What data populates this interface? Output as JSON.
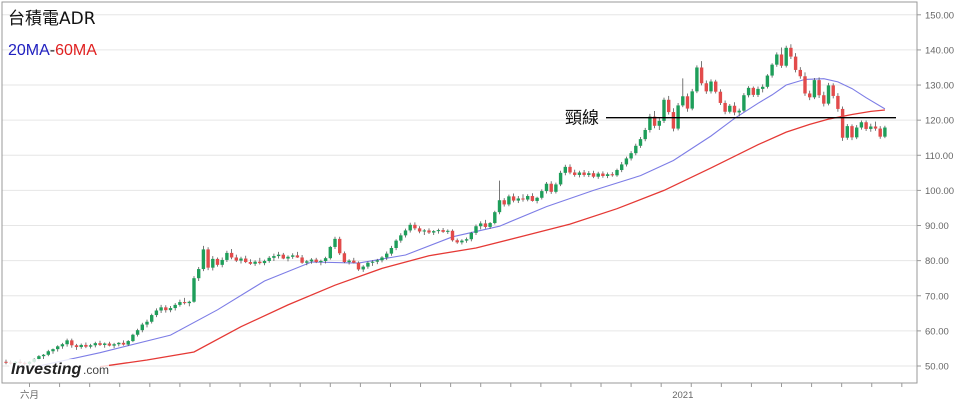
{
  "title": "台積電ADR",
  "legend": {
    "ma20_label": "20MA",
    "separator": "-",
    "ma60_label": "60MA"
  },
  "colors": {
    "up": "#1e9e5a",
    "down": "#e24b4b",
    "ma20": "#7d7de6",
    "ma60": "#e53935",
    "neckline": "#000000",
    "legend_ma20": "#2020c0",
    "legend_ma60": "#e02020",
    "grid": "#e6e6e6",
    "axis": "#999999"
  },
  "brand": {
    "name": "Investing",
    "suffix": ".com"
  },
  "chart_data": {
    "type": "candlestick",
    "title": "台積電ADR",
    "ylim": [
      44,
      152
    ],
    "yticks": [
      "50.00",
      "60.00",
      "70.00",
      "80.00",
      "90.00",
      "100.00",
      "110.00",
      "120.00",
      "130.00",
      "140.00",
      "150.00"
    ],
    "xticks": [
      {
        "label": "六月",
        "index": 5
      },
      {
        "label": "2021",
        "index": 144
      }
    ],
    "grid": true,
    "neckline": {
      "label": "頸線",
      "value": 120.7
    },
    "ohlc": [
      [
        51.2,
        51.8,
        50.5,
        51.0
      ],
      [
        51.0,
        51.6,
        50.4,
        50.8
      ],
      [
        50.8,
        51.4,
        50.2,
        51.2
      ],
      [
        51.2,
        51.9,
        50.6,
        50.9
      ],
      [
        50.9,
        51.3,
        50.0,
        50.6
      ],
      [
        50.6,
        51.4,
        50.1,
        51.2
      ],
      [
        51.2,
        52.2,
        50.9,
        52.0
      ],
      [
        52.0,
        53.1,
        51.6,
        52.8
      ],
      [
        52.8,
        53.4,
        52.0,
        53.2
      ],
      [
        53.2,
        54.6,
        52.8,
        54.2
      ],
      [
        54.2,
        55.0,
        53.5,
        54.8
      ],
      [
        54.8,
        55.9,
        54.1,
        55.6
      ],
      [
        55.6,
        56.6,
        54.9,
        56.2
      ],
      [
        56.2,
        57.8,
        55.5,
        57.3
      ],
      [
        57.3,
        57.8,
        55.2,
        55.9
      ],
      [
        55.9,
        56.3,
        54.6,
        55.4
      ],
      [
        55.4,
        56.4,
        54.9,
        56.0
      ],
      [
        56.0,
        56.7,
        55.1,
        55.5
      ],
      [
        55.5,
        56.3,
        55.0,
        55.9
      ],
      [
        55.9,
        56.9,
        55.3,
        56.5
      ],
      [
        56.5,
        57.2,
        55.7,
        56.0
      ],
      [
        56.0,
        56.7,
        55.2,
        56.4
      ],
      [
        56.4,
        56.9,
        55.6,
        55.8
      ],
      [
        55.8,
        56.6,
        55.1,
        56.2
      ],
      [
        56.2,
        56.8,
        55.6,
        56.6
      ],
      [
        56.6,
        57.3,
        55.8,
        56.1
      ],
      [
        56.1,
        57.4,
        55.7,
        57.1
      ],
      [
        57.1,
        59.2,
        56.8,
        58.9
      ],
      [
        58.9,
        60.6,
        58.4,
        60.2
      ],
      [
        60.2,
        62.3,
        59.6,
        61.8
      ],
      [
        61.8,
        63.2,
        61.0,
        62.6
      ],
      [
        62.6,
        64.9,
        62.1,
        64.5
      ],
      [
        64.5,
        66.4,
        63.9,
        65.8
      ],
      [
        65.8,
        67.4,
        65.1,
        66.7
      ],
      [
        66.7,
        67.3,
        65.2,
        65.9
      ],
      [
        65.9,
        67.1,
        65.3,
        66.5
      ],
      [
        66.5,
        67.9,
        65.8,
        67.4
      ],
      [
        67.4,
        68.9,
        66.9,
        68.2
      ],
      [
        68.2,
        69.4,
        67.5,
        67.9
      ],
      [
        67.9,
        68.6,
        67.0,
        68.3
      ],
      [
        68.3,
        75.6,
        68.0,
        75.0
      ],
      [
        75.0,
        78.2,
        74.2,
        77.6
      ],
      [
        77.6,
        84.2,
        77.0,
        83.2
      ],
      [
        83.2,
        83.8,
        77.3,
        78.0
      ],
      [
        78.0,
        81.3,
        77.2,
        80.5
      ],
      [
        80.5,
        80.9,
        78.3,
        78.8
      ],
      [
        78.8,
        80.9,
        78.1,
        80.2
      ],
      [
        80.2,
        82.8,
        79.6,
        82.2
      ],
      [
        82.2,
        83.3,
        80.4,
        80.9
      ],
      [
        80.9,
        81.7,
        79.6,
        80.0
      ],
      [
        80.0,
        81.1,
        79.2,
        80.6
      ],
      [
        80.6,
        81.4,
        79.3,
        79.6
      ],
      [
        79.6,
        80.4,
        78.8,
        79.1
      ],
      [
        79.1,
        80.1,
        78.5,
        79.7
      ],
      [
        79.7,
        80.8,
        78.9,
        79.3
      ],
      [
        79.3,
        80.3,
        78.7,
        79.9
      ],
      [
        79.9,
        81.3,
        79.4,
        80.8
      ],
      [
        80.8,
        82.0,
        79.9,
        81.3
      ],
      [
        81.3,
        82.5,
        80.6,
        81.7
      ],
      [
        81.7,
        82.2,
        80.4,
        80.6
      ],
      [
        80.6,
        81.5,
        79.8,
        81.1
      ],
      [
        81.1,
        82.1,
        80.5,
        81.5
      ],
      [
        81.5,
        82.5,
        80.8,
        80.9
      ],
      [
        80.9,
        81.6,
        79.1,
        79.4
      ],
      [
        79.4,
        80.2,
        78.7,
        79.8
      ],
      [
        79.8,
        80.7,
        79.1,
        80.3
      ],
      [
        80.3,
        80.8,
        79.3,
        79.6
      ],
      [
        79.6,
        80.3,
        78.7,
        79.9
      ],
      [
        79.9,
        81.1,
        79.2,
        80.7
      ],
      [
        80.7,
        84.2,
        80.3,
        83.9
      ],
      [
        83.9,
        86.8,
        83.3,
        86.2
      ],
      [
        86.2,
        86.8,
        81.6,
        82.1
      ],
      [
        82.1,
        82.6,
        79.3,
        79.6
      ],
      [
        79.6,
        80.4,
        78.9,
        80.0
      ],
      [
        80.0,
        80.8,
        79.2,
        79.4
      ],
      [
        79.4,
        79.8,
        77.1,
        77.5
      ],
      [
        77.5,
        78.7,
        76.8,
        78.3
      ],
      [
        78.3,
        79.8,
        77.7,
        79.4
      ],
      [
        79.4,
        80.1,
        78.5,
        79.7
      ],
      [
        79.7,
        80.5,
        79.0,
        80.1
      ],
      [
        80.1,
        81.3,
        79.5,
        80.9
      ],
      [
        80.9,
        82.6,
        80.2,
        82.0
      ],
      [
        82.0,
        84.2,
        81.4,
        83.6
      ],
      [
        83.6,
        86.1,
        83.0,
        85.7
      ],
      [
        85.7,
        87.8,
        85.1,
        87.2
      ],
      [
        87.2,
        89.1,
        86.6,
        88.6
      ],
      [
        88.6,
        90.8,
        88.0,
        90.2
      ],
      [
        90.2,
        90.9,
        88.7,
        89.2
      ],
      [
        89.2,
        89.8,
        87.8,
        88.3
      ],
      [
        88.3,
        89.0,
        87.3,
        88.6
      ],
      [
        88.6,
        89.2,
        87.6,
        88.0
      ],
      [
        88.0,
        88.7,
        87.3,
        88.4
      ],
      [
        88.4,
        89.1,
        87.7,
        88.7
      ],
      [
        88.7,
        89.3,
        87.9,
        88.2
      ],
      [
        88.2,
        88.9,
        87.6,
        88.5
      ],
      [
        88.5,
        88.9,
        85.4,
        85.8
      ],
      [
        85.8,
        86.3,
        84.8,
        85.2
      ],
      [
        85.2,
        86.1,
        84.6,
        85.7
      ],
      [
        85.7,
        86.6,
        85.1,
        86.1
      ],
      [
        86.1,
        88.2,
        85.5,
        87.9
      ],
      [
        87.9,
        90.3,
        87.3,
        89.8
      ],
      [
        89.8,
        91.2,
        88.9,
        90.6
      ],
      [
        90.6,
        91.6,
        89.1,
        89.6
      ],
      [
        89.6,
        91.0,
        89.0,
        90.7
      ],
      [
        90.7,
        94.2,
        90.3,
        93.8
      ],
      [
        93.8,
        102.8,
        93.2,
        97.2
      ],
      [
        97.2,
        97.8,
        95.4,
        96.0
      ],
      [
        96.0,
        98.8,
        95.5,
        98.3
      ],
      [
        98.3,
        99.1,
        96.6,
        97.1
      ],
      [
        97.1,
        98.4,
        96.4,
        97.7
      ],
      [
        97.7,
        98.9,
        96.8,
        97.4
      ],
      [
        97.4,
        98.9,
        96.9,
        98.4
      ],
      [
        98.4,
        99.2,
        96.8,
        97.0
      ],
      [
        97.0,
        98.2,
        96.3,
        97.9
      ],
      [
        97.9,
        100.3,
        97.4,
        99.8
      ],
      [
        99.8,
        102.4,
        99.1,
        101.9
      ],
      [
        101.9,
        102.6,
        99.0,
        99.6
      ],
      [
        99.6,
        102.2,
        99.1,
        101.7
      ],
      [
        101.7,
        105.6,
        101.2,
        105.0
      ],
      [
        105.0,
        107.3,
        104.3,
        106.7
      ],
      [
        106.7,
        107.4,
        104.6,
        105.1
      ],
      [
        105.1,
        105.9,
        103.9,
        104.4
      ],
      [
        104.4,
        105.6,
        103.7,
        105.1
      ],
      [
        105.1,
        105.8,
        103.9,
        104.4
      ],
      [
        104.4,
        105.5,
        103.8,
        104.9
      ],
      [
        104.9,
        105.6,
        103.5,
        103.9
      ],
      [
        103.9,
        105.3,
        103.3,
        104.8
      ],
      [
        104.8,
        105.4,
        103.6,
        104.1
      ],
      [
        104.1,
        105.1,
        103.5,
        104.6
      ],
      [
        104.6,
        105.2,
        103.9,
        104.3
      ],
      [
        104.3,
        106.2,
        103.9,
        105.8
      ],
      [
        105.8,
        108.1,
        105.2,
        107.4
      ],
      [
        107.4,
        109.6,
        106.8,
        109.1
      ],
      [
        109.1,
        111.2,
        108.5,
        110.6
      ],
      [
        110.6,
        113.3,
        110.0,
        112.7
      ],
      [
        112.7,
        115.2,
        112.1,
        114.6
      ],
      [
        114.6,
        117.8,
        114.0,
        117.2
      ],
      [
        117.2,
        121.8,
        116.5,
        121.0
      ],
      [
        121.0,
        122.6,
        117.7,
        118.4
      ],
      [
        118.4,
        120.6,
        117.2,
        119.8
      ],
      [
        119.8,
        126.4,
        119.2,
        125.8
      ],
      [
        125.8,
        126.9,
        121.6,
        122.3
      ],
      [
        122.3,
        123.4,
        116.8,
        117.6
      ],
      [
        117.6,
        124.9,
        117.1,
        124.2
      ],
      [
        124.2,
        131.9,
        123.7,
        126.8
      ],
      [
        126.8,
        127.6,
        122.4,
        123.3
      ],
      [
        123.3,
        128.9,
        122.8,
        128.2
      ],
      [
        128.2,
        135.6,
        127.7,
        135.0
      ],
      [
        135.0,
        136.8,
        129.9,
        130.5
      ],
      [
        130.5,
        131.3,
        127.5,
        128.2
      ],
      [
        128.2,
        131.6,
        127.6,
        131.0
      ],
      [
        131.0,
        131.5,
        127.6,
        128.1
      ],
      [
        128.1,
        128.8,
        124.3,
        124.9
      ],
      [
        124.9,
        125.6,
        121.7,
        122.4
      ],
      [
        122.4,
        124.6,
        121.9,
        124.1
      ],
      [
        124.1,
        125.1,
        121.4,
        122.2
      ],
      [
        122.2,
        123.3,
        121.1,
        122.7
      ],
      [
        122.7,
        127.7,
        122.3,
        127.1
      ],
      [
        127.1,
        129.7,
        126.5,
        129.2
      ],
      [
        129.2,
        129.6,
        126.6,
        127.2
      ],
      [
        127.2,
        129.6,
        126.6,
        128.9
      ],
      [
        128.9,
        130.2,
        127.9,
        129.5
      ],
      [
        129.5,
        133.1,
        129.0,
        132.7
      ],
      [
        132.7,
        136.2,
        132.1,
        135.8
      ],
      [
        135.8,
        139.3,
        135.2,
        138.7
      ],
      [
        138.7,
        140.7,
        134.9,
        135.5
      ],
      [
        135.5,
        141.2,
        135.0,
        140.6
      ],
      [
        140.6,
        141.6,
        137.4,
        138.1
      ],
      [
        138.1,
        139.1,
        133.6,
        134.3
      ],
      [
        134.3,
        135.1,
        131.8,
        132.5
      ],
      [
        132.5,
        133.6,
        126.9,
        127.6
      ],
      [
        127.6,
        128.4,
        125.7,
        126.5
      ],
      [
        126.5,
        132.0,
        126.0,
        131.4
      ],
      [
        131.4,
        132.2,
        126.3,
        127.1
      ],
      [
        127.1,
        128.1,
        123.9,
        124.7
      ],
      [
        124.7,
        130.6,
        124.2,
        129.9
      ],
      [
        129.9,
        130.5,
        126.2,
        126.9
      ],
      [
        126.9,
        127.7,
        122.4,
        123.2
      ],
      [
        123.2,
        123.9,
        114.1,
        115.0
      ],
      [
        115.0,
        118.9,
        114.4,
        118.3
      ],
      [
        118.3,
        118.8,
        114.3,
        115.1
      ],
      [
        115.1,
        118.6,
        114.6,
        117.9
      ],
      [
        117.9,
        119.9,
        117.3,
        119.4
      ],
      [
        119.4,
        119.9,
        116.9,
        117.5
      ],
      [
        117.5,
        119.0,
        116.7,
        118.2
      ],
      [
        118.2,
        119.6,
        117.0,
        117.6
      ],
      [
        117.6,
        118.3,
        114.7,
        115.3
      ],
      [
        115.3,
        118.4,
        114.9,
        117.9
      ]
    ],
    "ma20_points": [
      [
        7,
        50.0
      ],
      [
        20,
        53.8
      ],
      [
        35,
        58.8
      ],
      [
        45,
        66.0
      ],
      [
        55,
        74.2
      ],
      [
        65,
        79.6
      ],
      [
        75,
        79.3
      ],
      [
        85,
        81.6
      ],
      [
        95,
        86.8
      ],
      [
        105,
        89.8
      ],
      [
        115,
        95.4
      ],
      [
        125,
        100.0
      ],
      [
        135,
        104.2
      ],
      [
        142,
        108.5
      ],
      [
        150,
        115.5
      ],
      [
        155,
        120.5
      ],
      [
        160,
        124.8
      ],
      [
        163,
        127.2
      ],
      [
        166,
        130.0
      ],
      [
        170,
        131.6
      ],
      [
        174,
        131.8
      ],
      [
        177,
        130.9
      ],
      [
        180,
        129.0
      ],
      [
        183,
        126.4
      ],
      [
        187,
        123.2
      ]
    ],
    "ma60_points": [
      [
        20,
        49.8
      ],
      [
        30,
        51.7
      ],
      [
        40,
        54.0
      ],
      [
        50,
        61.2
      ],
      [
        60,
        67.4
      ],
      [
        70,
        73.0
      ],
      [
        80,
        77.8
      ],
      [
        90,
        81.4
      ],
      [
        100,
        83.6
      ],
      [
        110,
        87.0
      ],
      [
        120,
        90.4
      ],
      [
        130,
        94.8
      ],
      [
        140,
        100.0
      ],
      [
        150,
        106.4
      ],
      [
        160,
        113.0
      ],
      [
        166,
        116.6
      ],
      [
        171,
        118.8
      ],
      [
        175,
        120.3
      ],
      [
        180,
        121.6
      ],
      [
        184,
        122.5
      ],
      [
        187,
        122.9
      ]
    ]
  }
}
